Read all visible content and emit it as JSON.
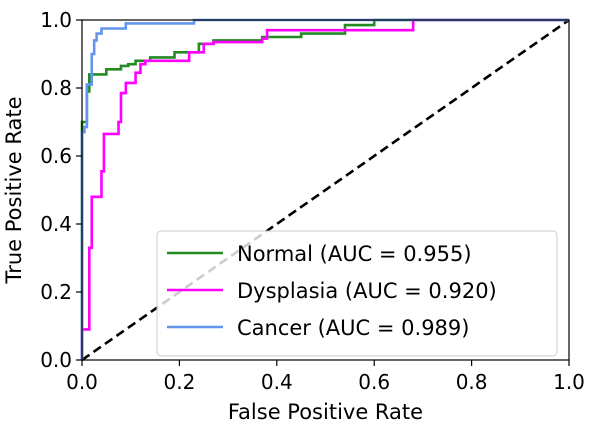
{
  "chart_data": {
    "type": "line",
    "title": "",
    "xlabel": "False Positive Rate",
    "ylabel": "True Positive Rate",
    "xlim": [
      0.0,
      1.0
    ],
    "ylim": [
      0.0,
      1.0
    ],
    "x_ticks": [
      "0.0",
      "0.2",
      "0.4",
      "0.6",
      "0.8",
      "1.0"
    ],
    "y_ticks": [
      "0.0",
      "0.2",
      "0.4",
      "0.6",
      "0.8",
      "1.0"
    ],
    "grid": false,
    "legend_position": "lower-right",
    "series": [
      {
        "name": "Normal (AUC = 0.955)",
        "color": "#228B22",
        "points": [
          [
            0.0,
            0.0
          ],
          [
            0.0,
            0.7
          ],
          [
            0.01,
            0.7
          ],
          [
            0.01,
            0.79
          ],
          [
            0.015,
            0.79
          ],
          [
            0.015,
            0.84
          ],
          [
            0.025,
            0.84
          ],
          [
            0.05,
            0.84
          ],
          [
            0.05,
            0.855
          ],
          [
            0.08,
            0.855
          ],
          [
            0.08,
            0.865
          ],
          [
            0.095,
            0.865
          ],
          [
            0.095,
            0.87
          ],
          [
            0.11,
            0.87
          ],
          [
            0.11,
            0.88
          ],
          [
            0.14,
            0.88
          ],
          [
            0.14,
            0.89
          ],
          [
            0.19,
            0.89
          ],
          [
            0.19,
            0.905
          ],
          [
            0.24,
            0.905
          ],
          [
            0.24,
            0.93
          ],
          [
            0.27,
            0.93
          ],
          [
            0.27,
            0.94
          ],
          [
            0.37,
            0.94
          ],
          [
            0.37,
            0.95
          ],
          [
            0.45,
            0.95
          ],
          [
            0.45,
            0.96
          ],
          [
            0.54,
            0.96
          ],
          [
            0.54,
            0.985
          ],
          [
            0.6,
            0.985
          ],
          [
            0.6,
            0.99
          ],
          [
            0.6,
            1.0
          ],
          [
            1.0,
            1.0
          ]
        ]
      },
      {
        "name": "Dysplasia (AUC = 0.920)",
        "color": "#FF00FF",
        "points": [
          [
            0.0,
            0.0
          ],
          [
            0.0,
            0.09
          ],
          [
            0.015,
            0.09
          ],
          [
            0.015,
            0.33
          ],
          [
            0.02,
            0.33
          ],
          [
            0.02,
            0.48
          ],
          [
            0.04,
            0.48
          ],
          [
            0.04,
            0.555
          ],
          [
            0.045,
            0.555
          ],
          [
            0.045,
            0.665
          ],
          [
            0.075,
            0.665
          ],
          [
            0.075,
            0.7
          ],
          [
            0.08,
            0.7
          ],
          [
            0.08,
            0.785
          ],
          [
            0.09,
            0.785
          ],
          [
            0.09,
            0.815
          ],
          [
            0.11,
            0.815
          ],
          [
            0.11,
            0.845
          ],
          [
            0.12,
            0.845
          ],
          [
            0.12,
            0.87
          ],
          [
            0.13,
            0.87
          ],
          [
            0.13,
            0.88
          ],
          [
            0.22,
            0.88
          ],
          [
            0.22,
            0.905
          ],
          [
            0.25,
            0.905
          ],
          [
            0.25,
            0.93
          ],
          [
            0.27,
            0.93
          ],
          [
            0.27,
            0.935
          ],
          [
            0.37,
            0.935
          ],
          [
            0.37,
            0.945
          ],
          [
            0.38,
            0.945
          ],
          [
            0.38,
            0.97
          ],
          [
            0.68,
            0.97
          ],
          [
            0.68,
            1.0
          ],
          [
            1.0,
            1.0
          ]
        ]
      },
      {
        "name": "Cancer (AUC = 0.989)",
        "color": "#6495ED",
        "points": [
          [
            0.0,
            0.0
          ],
          [
            0.0,
            0.67
          ],
          [
            0.005,
            0.67
          ],
          [
            0.005,
            0.685
          ],
          [
            0.01,
            0.685
          ],
          [
            0.01,
            0.81
          ],
          [
            0.02,
            0.81
          ],
          [
            0.02,
            0.9
          ],
          [
            0.025,
            0.9
          ],
          [
            0.025,
            0.94
          ],
          [
            0.03,
            0.94
          ],
          [
            0.03,
            0.96
          ],
          [
            0.04,
            0.96
          ],
          [
            0.04,
            0.975
          ],
          [
            0.09,
            0.975
          ],
          [
            0.09,
            0.99
          ],
          [
            0.23,
            0.99
          ],
          [
            0.23,
            1.0
          ],
          [
            1.0,
            1.0
          ]
        ]
      },
      {
        "name": "",
        "color": "#000000",
        "dashed": true,
        "points": [
          [
            0.0,
            0.0
          ],
          [
            1.0,
            1.0
          ]
        ]
      }
    ]
  }
}
